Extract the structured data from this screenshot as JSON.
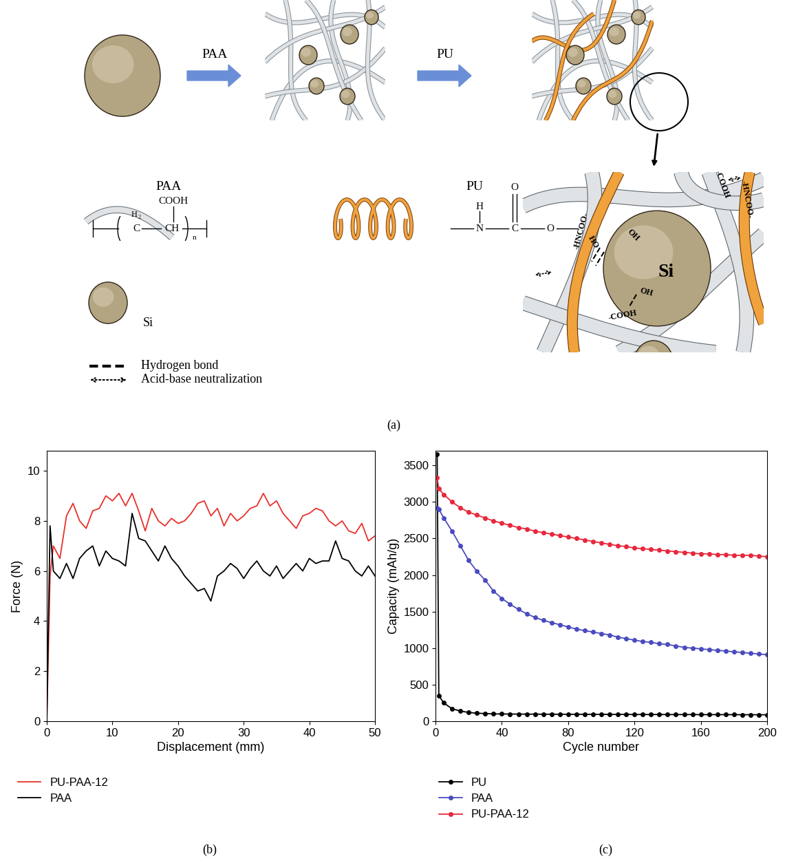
{
  "diagram": {
    "panel_label": "(a)",
    "arrows": [
      "PAA",
      "PU"
    ],
    "components": {
      "PAA": {
        "name": "PAA",
        "formula": [
          "COOH",
          "H",
          "2",
          "C",
          "CH",
          "n"
        ]
      },
      "PU": {
        "name": "PU",
        "formula": [
          "H",
          "N",
          "C",
          "O",
          "O"
        ]
      }
    },
    "zoom": {
      "particle": "Si",
      "groups": [
        "-HNCOO-",
        "-HNCOO-",
        "-COOH",
        "-COOH",
        "HO",
        "OH",
        "OH"
      ]
    },
    "symbols": [
      "Si",
      "Hydrogen bond",
      "Acid-base neutralization"
    ]
  },
  "chart_data": [
    {
      "type": "line",
      "panel_label": "(b)",
      "x_label": "Displacement (mm)",
      "y_label": "Force (N)",
      "x": [
        0,
        0.5,
        1,
        2,
        3,
        4,
        5,
        6,
        7,
        8,
        9,
        10,
        11,
        12,
        13,
        14,
        15,
        16,
        17,
        18,
        19,
        20,
        21,
        22,
        23,
        24,
        25,
        26,
        27,
        28,
        29,
        30,
        31,
        32,
        33,
        34,
        35,
        36,
        37,
        38,
        39,
        40,
        41,
        42,
        43,
        44,
        45,
        46,
        47,
        48,
        49,
        50
      ],
      "series": [
        {
          "name": "PU-PAA-12",
          "color": "#e8302a",
          "line_style": "solid",
          "values": [
            0,
            5.8,
            7.0,
            6.5,
            8.2,
            8.7,
            8.0,
            7.7,
            8.4,
            8.5,
            9.0,
            8.8,
            9.1,
            8.6,
            9.1,
            8.4,
            7.6,
            8.5,
            8.0,
            7.8,
            8.1,
            7.9,
            8.0,
            8.3,
            8.7,
            8.8,
            8.2,
            8.5,
            7.8,
            8.3,
            8.0,
            8.2,
            8.5,
            8.6,
            9.1,
            8.6,
            8.8,
            8.3,
            8.0,
            7.7,
            8.2,
            8.3,
            8.5,
            8.4,
            8.0,
            7.8,
            8.0,
            7.6,
            7.5,
            7.9,
            7.2,
            7.4
          ]
        },
        {
          "name": "PAA",
          "color": "#000000",
          "line_style": "solid",
          "values": [
            0,
            7.8,
            6.0,
            5.7,
            6.3,
            5.7,
            6.5,
            6.8,
            7.0,
            6.2,
            6.8,
            6.5,
            6.4,
            6.2,
            8.3,
            7.3,
            7.2,
            6.8,
            6.4,
            7.0,
            6.5,
            6.2,
            5.8,
            5.5,
            5.2,
            5.3,
            4.8,
            5.8,
            6.0,
            6.3,
            6.1,
            5.7,
            6.1,
            6.4,
            6.0,
            5.8,
            6.2,
            5.7,
            6.0,
            6.3,
            6.0,
            6.5,
            6.3,
            6.4,
            6.4,
            7.2,
            6.5,
            6.4,
            6.0,
            5.8,
            6.2,
            5.8
          ]
        }
      ],
      "xlim": [
        0,
        50
      ],
      "xticks": [
        0,
        10,
        20,
        30,
        40,
        50
      ],
      "ylim": [
        0,
        10.8
      ],
      "yticks": [
        0,
        2,
        4,
        6,
        8,
        10
      ],
      "legend": "upper left",
      "grid": false
    },
    {
      "type": "line",
      "panel_label": "(c)",
      "x_label": "Cycle number",
      "y_label": "Capacity (mAh/g)",
      "x": [
        1,
        2,
        5,
        10,
        15,
        20,
        25,
        30,
        35,
        40,
        45,
        50,
        55,
        60,
        65,
        70,
        75,
        80,
        85,
        90,
        95,
        100,
        105,
        110,
        115,
        120,
        125,
        130,
        135,
        140,
        145,
        150,
        155,
        160,
        165,
        170,
        175,
        180,
        185,
        190,
        195,
        200
      ],
      "series": [
        {
          "name": "PU",
          "color": "#000000",
          "marker": "circle",
          "line_style": "solid",
          "values": [
            3650,
            350,
            250,
            170,
            140,
            120,
            110,
            105,
            100,
            100,
            98,
            98,
            97,
            97,
            96,
            96,
            95,
            95,
            95,
            94,
            94,
            94,
            93,
            93,
            93,
            92,
            92,
            92,
            92,
            91,
            91,
            91,
            91,
            90,
            90,
            90,
            90,
            90,
            89,
            89,
            89,
            88
          ]
        },
        {
          "name": "PAA",
          "color": "#4b4bc0",
          "marker": "circle",
          "line_style": "solid",
          "values": [
            2920,
            2900,
            2780,
            2600,
            2400,
            2200,
            2050,
            1930,
            1780,
            1680,
            1600,
            1530,
            1470,
            1420,
            1380,
            1350,
            1320,
            1290,
            1260,
            1240,
            1220,
            1200,
            1180,
            1150,
            1130,
            1110,
            1090,
            1080,
            1060,
            1050,
            1030,
            1010,
            1000,
            990,
            980,
            970,
            960,
            950,
            940,
            930,
            920,
            910
          ]
        },
        {
          "name": "PU-PAA-12",
          "color": "#e8283c",
          "marker": "circle",
          "line_style": "solid",
          "values": [
            3330,
            3180,
            3100,
            3000,
            2920,
            2860,
            2820,
            2780,
            2740,
            2710,
            2680,
            2650,
            2630,
            2600,
            2580,
            2560,
            2540,
            2520,
            2500,
            2480,
            2460,
            2440,
            2420,
            2400,
            2390,
            2370,
            2360,
            2350,
            2340,
            2330,
            2320,
            2310,
            2300,
            2290,
            2290,
            2280,
            2280,
            2270,
            2270,
            2270,
            2260,
            2250
          ]
        }
      ],
      "xlim": [
        0,
        200
      ],
      "xticks": [
        0,
        40,
        80,
        120,
        160,
        200
      ],
      "ylim": [
        0,
        3700
      ],
      "yticks": [
        0,
        500,
        1000,
        1500,
        2000,
        2500,
        3000,
        3500
      ],
      "legend": "upper left",
      "grid": false
    }
  ]
}
